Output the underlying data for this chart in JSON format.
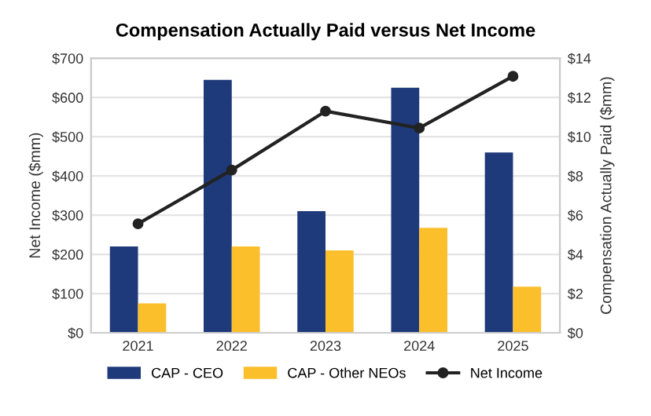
{
  "chart_data": {
    "type": "bar",
    "title": "Compensation Actually Paid versus Net Income",
    "categories": [
      "2021",
      "2022",
      "2023",
      "2024",
      "2025"
    ],
    "series": [
      {
        "name": "CAP - CEO",
        "color": "#1f3a7a",
        "axis": "y2",
        "values": [
          4.4,
          12.9,
          6.2,
          12.5,
          9.2
        ]
      },
      {
        "name": "CAP - Other NEOs",
        "color": "#fbbf2c",
        "axis": "y2",
        "values": [
          1.5,
          4.4,
          4.2,
          5.35,
          2.35
        ]
      },
      {
        "name": "Net Income",
        "type": "line",
        "color": "#222222",
        "marker": "circle",
        "values": [
          278,
          415,
          565,
          522,
          654
        ]
      }
    ],
    "ylabel": "Net Income ($mm)",
    "y2label": "Compensation Actually Paid ($mm)",
    "ylim": [
      0,
      700
    ],
    "yticks": [
      {
        "value": 0,
        "label": "$0"
      },
      {
        "value": 100,
        "label": "$100"
      },
      {
        "value": 200,
        "label": "$200"
      },
      {
        "value": 300,
        "label": "$300"
      },
      {
        "value": 400,
        "label": "$400"
      },
      {
        "value": 500,
        "label": "$500"
      },
      {
        "value": 600,
        "label": "$600"
      },
      {
        "value": 700,
        "label": "$700"
      }
    ],
    "y2lim": [
      0,
      14
    ],
    "y2ticks": [
      {
        "value": 0,
        "label": "$0"
      },
      {
        "value": 2,
        "label": "$2"
      },
      {
        "value": 4,
        "label": "$4"
      },
      {
        "value": 6,
        "label": "$6"
      },
      {
        "value": 8,
        "label": "$8"
      },
      {
        "value": 10,
        "label": "$10"
      },
      {
        "value": 12,
        "label": "$12"
      },
      {
        "value": 14,
        "label": "$14"
      }
    ],
    "grid": "y",
    "legend": "bottom"
  }
}
